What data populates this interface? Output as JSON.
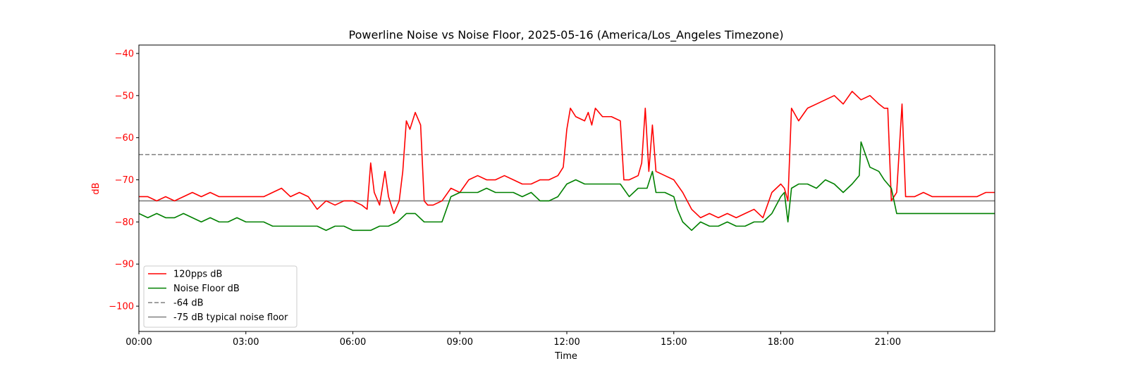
{
  "chart_data": {
    "type": "line",
    "title": "Powerline Noise vs Noise Floor, 2025-05-16 (America/Los_Angeles Timezone)",
    "xlabel": "Time",
    "ylabel": "dB",
    "ylabel_color": "#ff0000",
    "ytick_color": "#ff0000",
    "xlim": [
      0,
      24
    ],
    "ylim": [
      -106,
      -38
    ],
    "x_ticks": [
      {
        "value": 0,
        "label": "00:00"
      },
      {
        "value": 3,
        "label": "03:00"
      },
      {
        "value": 6,
        "label": "06:00"
      },
      {
        "value": 9,
        "label": "09:00"
      },
      {
        "value": 12,
        "label": "12:00"
      },
      {
        "value": 15,
        "label": "15:00"
      },
      {
        "value": 18,
        "label": "18:00"
      },
      {
        "value": 21,
        "label": "21:00"
      }
    ],
    "y_ticks": [
      {
        "value": -40,
        "label": "−40"
      },
      {
        "value": -50,
        "label": "−50"
      },
      {
        "value": -60,
        "label": "−60"
      },
      {
        "value": -70,
        "label": "−70"
      },
      {
        "value": -80,
        "label": "−80"
      },
      {
        "value": -90,
        "label": "−90"
      },
      {
        "value": -100,
        "label": "−100"
      }
    ],
    "grid": false,
    "legend_position": "lower-left",
    "series": [
      {
        "name": "120pps dB",
        "color": "#ff0000",
        "style": "solid",
        "x": [
          0,
          0.25,
          0.5,
          0.75,
          1.0,
          1.25,
          1.5,
          1.75,
          2.0,
          2.25,
          2.5,
          2.75,
          3.0,
          3.25,
          3.5,
          3.75,
          4.0,
          4.25,
          4.5,
          4.75,
          5.0,
          5.25,
          5.5,
          5.75,
          6.0,
          6.25,
          6.4,
          6.5,
          6.6,
          6.75,
          6.9,
          7.0,
          7.15,
          7.3,
          7.4,
          7.5,
          7.6,
          7.75,
          7.9,
          8.0,
          8.1,
          8.25,
          8.5,
          8.75,
          9.0,
          9.25,
          9.5,
          9.75,
          10.0,
          10.25,
          10.5,
          10.75,
          11.0,
          11.25,
          11.5,
          11.75,
          11.9,
          12.0,
          12.1,
          12.25,
          12.5,
          12.6,
          12.7,
          12.8,
          13.0,
          13.25,
          13.5,
          13.6,
          13.75,
          14.0,
          14.1,
          14.2,
          14.3,
          14.4,
          14.5,
          14.75,
          15.0,
          15.25,
          15.5,
          15.75,
          16.0,
          16.25,
          16.5,
          16.75,
          17.0,
          17.25,
          17.5,
          17.75,
          18.0,
          18.1,
          18.2,
          18.3,
          18.5,
          18.75,
          19.0,
          19.25,
          19.5,
          19.75,
          20.0,
          20.25,
          20.5,
          20.75,
          20.9,
          21.0,
          21.1,
          21.25,
          21.4,
          21.5,
          21.75,
          22.0,
          22.25,
          22.5,
          22.75,
          23.0,
          23.25,
          23.5,
          23.75,
          24.0
        ],
        "y": [
          -74,
          -74,
          -75,
          -74,
          -75,
          -74,
          -73,
          -74,
          -73,
          -74,
          -74,
          -74,
          -74,
          -74,
          -74,
          -73,
          -72,
          -74,
          -73,
          -74,
          -77,
          -75,
          -76,
          -75,
          -75,
          -76,
          -77,
          -66,
          -73,
          -76,
          -68,
          -74,
          -78,
          -75,
          -68,
          -56,
          -58,
          -54,
          -57,
          -75,
          -76,
          -76,
          -75,
          -72,
          -73,
          -70,
          -69,
          -70,
          -70,
          -69,
          -70,
          -71,
          -71,
          -70,
          -70,
          -69,
          -67,
          -58,
          -53,
          -55,
          -56,
          -54,
          -57,
          -53,
          -55,
          -55,
          -56,
          -70,
          -70,
          -69,
          -66,
          -53,
          -68,
          -57,
          -68,
          -69,
          -70,
          -73,
          -77,
          -79,
          -78,
          -79,
          -78,
          -79,
          -78,
          -77,
          -79,
          -73,
          -71,
          -72,
          -75,
          -53,
          -56,
          -53,
          -52,
          -51,
          -50,
          -52,
          -49,
          -51,
          -50,
          -52,
          -53,
          -53,
          -75,
          -73,
          -52,
          -74,
          -74,
          -73,
          -74,
          -74,
          -74,
          -74,
          -74,
          -74,
          -73,
          -73
        ]
      },
      {
        "name": "Noise Floor dB",
        "color": "#008000",
        "style": "solid",
        "x": [
          0,
          0.25,
          0.5,
          0.75,
          1.0,
          1.25,
          1.5,
          1.75,
          2.0,
          2.25,
          2.5,
          2.75,
          3.0,
          3.25,
          3.5,
          3.75,
          4.0,
          4.25,
          4.5,
          4.75,
          5.0,
          5.25,
          5.5,
          5.75,
          6.0,
          6.25,
          6.5,
          6.75,
          7.0,
          7.25,
          7.5,
          7.75,
          8.0,
          8.25,
          8.5,
          8.75,
          9.0,
          9.25,
          9.5,
          9.75,
          10.0,
          10.25,
          10.5,
          10.75,
          11.0,
          11.25,
          11.5,
          11.75,
          12.0,
          12.25,
          12.5,
          12.75,
          13.0,
          13.25,
          13.5,
          13.75,
          14.0,
          14.25,
          14.4,
          14.5,
          14.75,
          15.0,
          15.1,
          15.25,
          15.5,
          15.75,
          16.0,
          16.25,
          16.5,
          16.75,
          17.0,
          17.25,
          17.5,
          17.75,
          18.0,
          18.1,
          18.2,
          18.3,
          18.5,
          18.75,
          19.0,
          19.25,
          19.5,
          19.75,
          20.0,
          20.2,
          20.25,
          20.5,
          20.75,
          20.9,
          21.0,
          21.1,
          21.25,
          21.5,
          21.75,
          22.0,
          22.25,
          22.5,
          22.75,
          23.0,
          23.25,
          23.5,
          23.75,
          24.0
        ],
        "y": [
          -78,
          -79,
          -78,
          -79,
          -79,
          -78,
          -79,
          -80,
          -79,
          -80,
          -80,
          -79,
          -80,
          -80,
          -80,
          -81,
          -81,
          -81,
          -81,
          -81,
          -81,
          -82,
          -81,
          -81,
          -82,
          -82,
          -82,
          -81,
          -81,
          -80,
          -78,
          -78,
          -80,
          -80,
          -80,
          -74,
          -73,
          -73,
          -73,
          -72,
          -73,
          -73,
          -73,
          -74,
          -73,
          -75,
          -75,
          -74,
          -71,
          -70,
          -71,
          -71,
          -71,
          -71,
          -71,
          -74,
          -72,
          -72,
          -68,
          -73,
          -73,
          -74,
          -77,
          -80,
          -82,
          -80,
          -81,
          -81,
          -80,
          -81,
          -81,
          -80,
          -80,
          -78,
          -74,
          -73,
          -80,
          -72,
          -71,
          -71,
          -72,
          -70,
          -71,
          -73,
          -71,
          -69,
          -61,
          -67,
          -68,
          -70,
          -71,
          -72,
          -78,
          -78,
          -78,
          -78,
          -78,
          -78,
          -78,
          -78,
          -78,
          -78,
          -78,
          -78
        ]
      },
      {
        "name": "-64 dB",
        "color": "#808080",
        "style": "dashed",
        "x": [
          0,
          24
        ],
        "y": [
          -64,
          -64
        ]
      },
      {
        "name": "-75 dB typical noise floor",
        "color": "#808080",
        "style": "solid",
        "x": [
          0,
          24
        ],
        "y": [
          -75,
          -75
        ]
      }
    ]
  }
}
